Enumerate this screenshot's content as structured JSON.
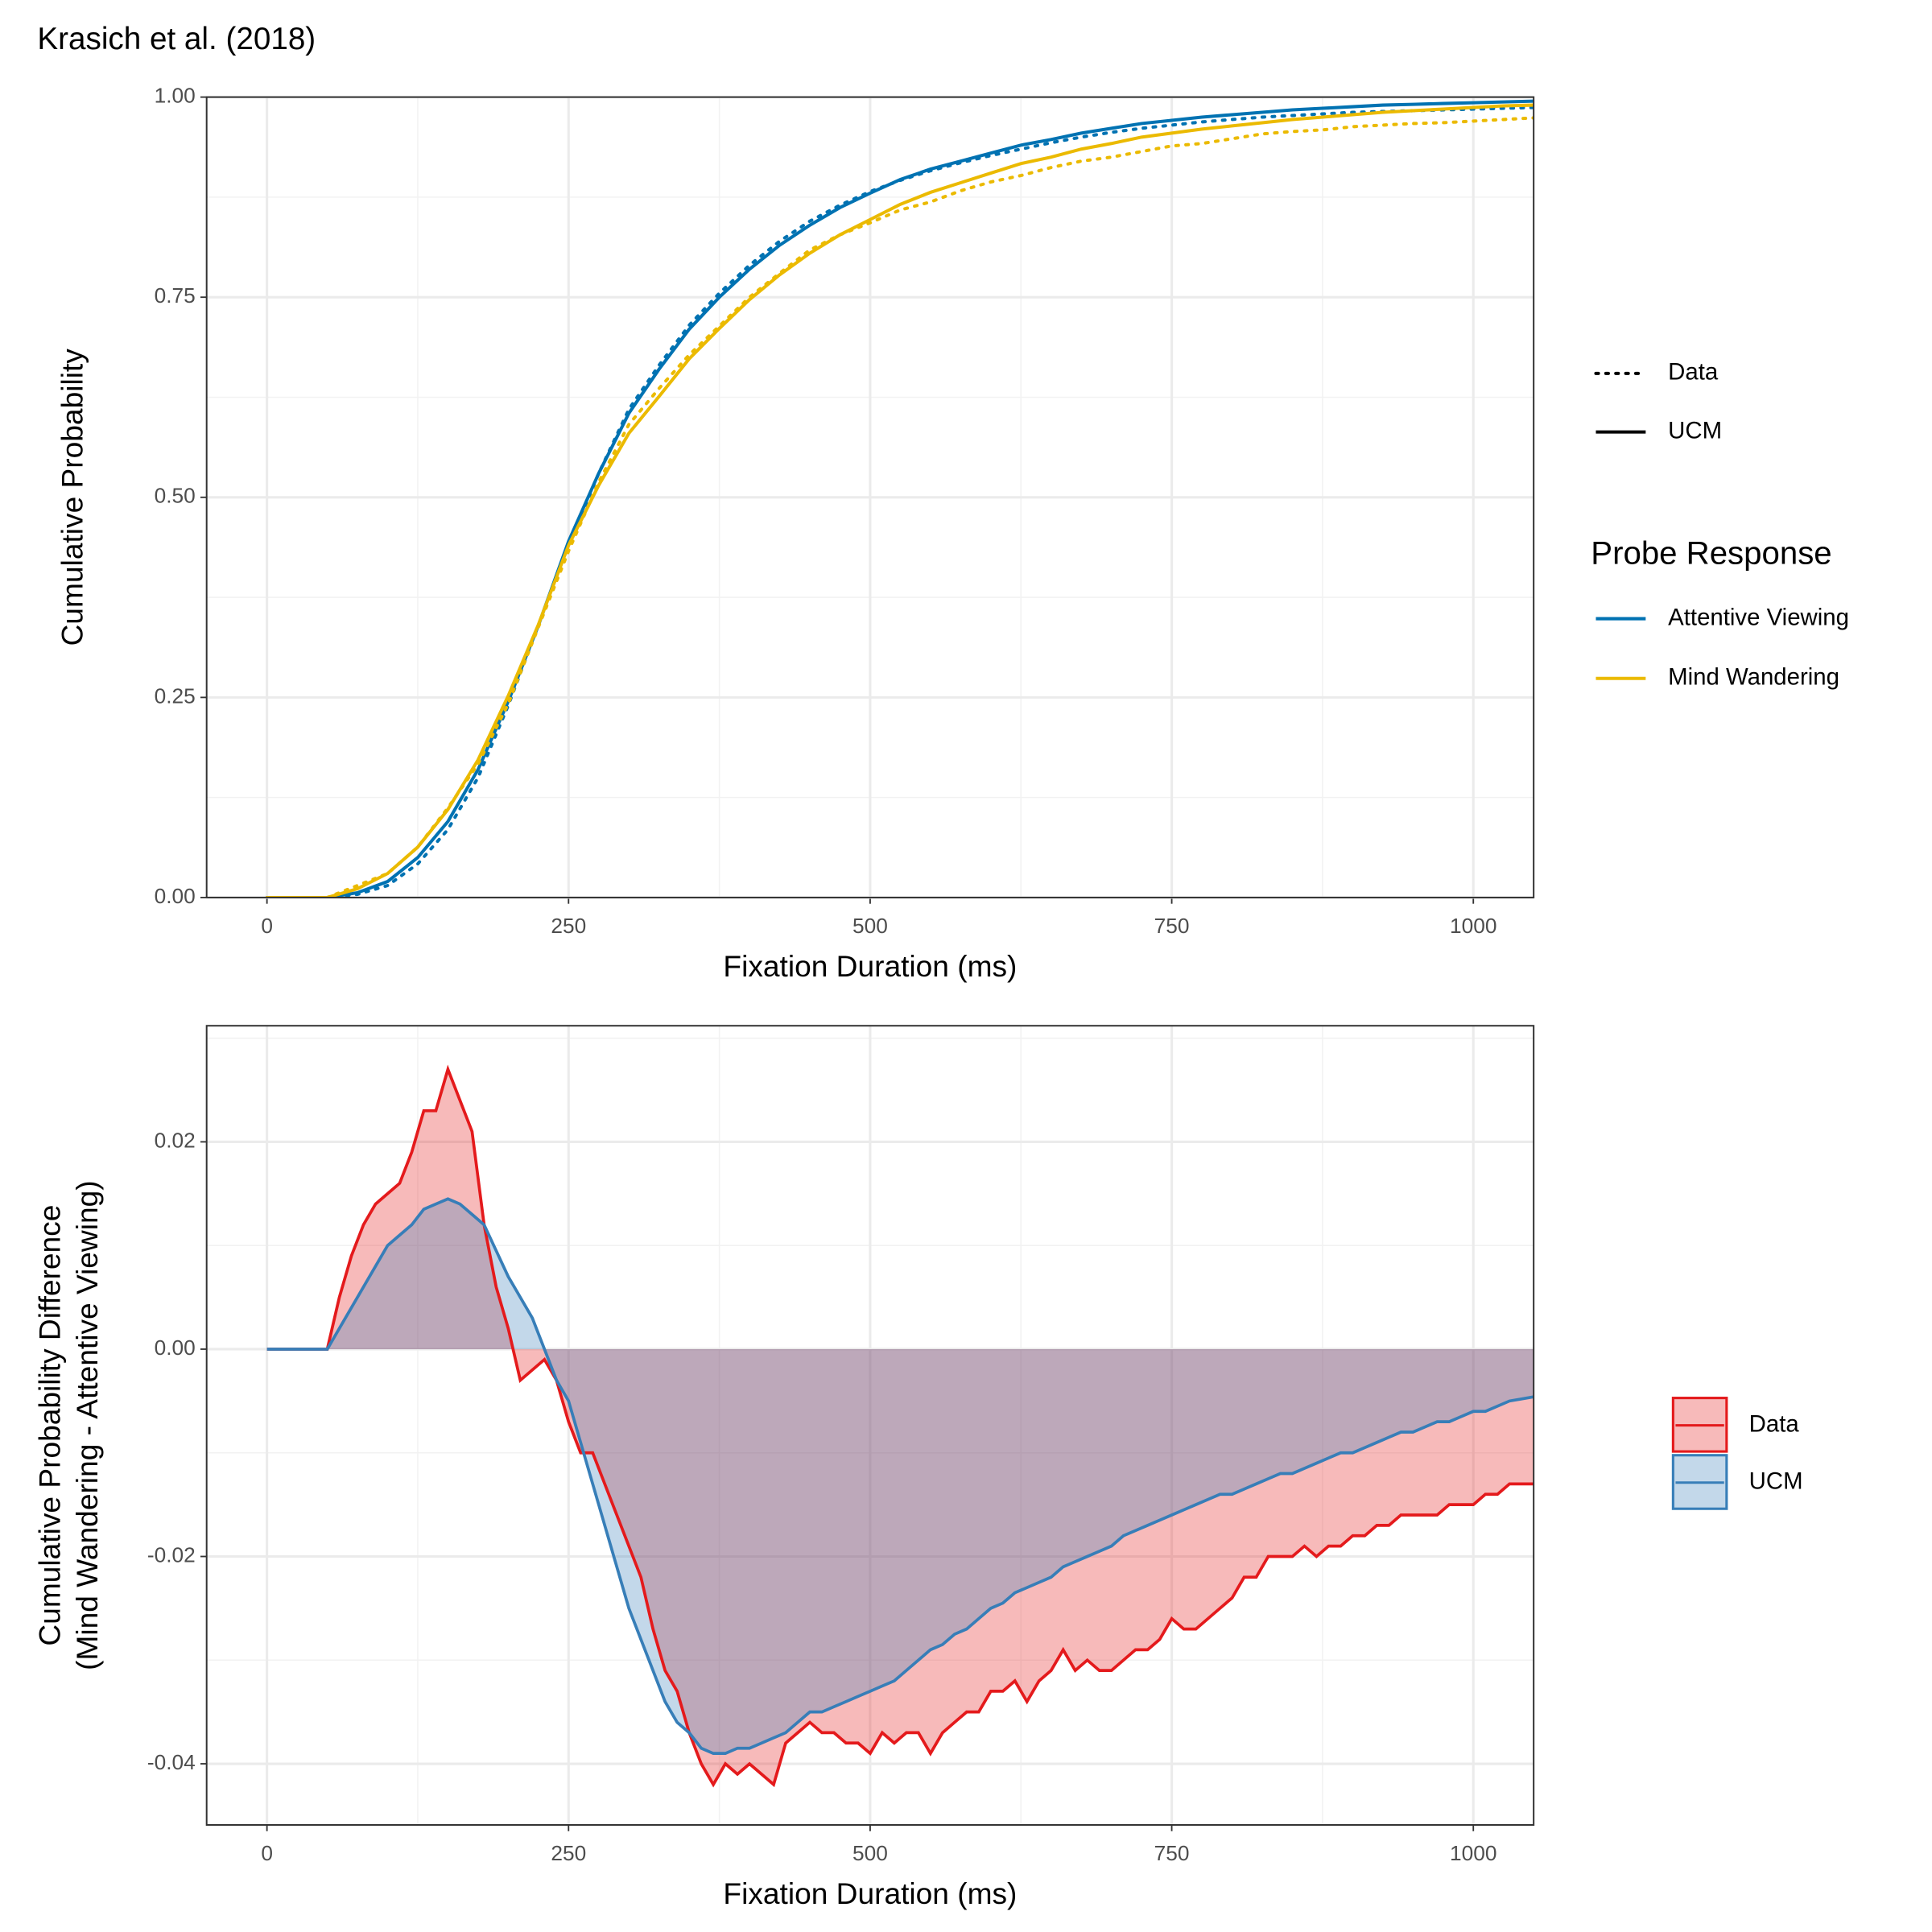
{
  "chart_data": [
    {
      "type": "line",
      "title": "Krasich et al. (2018)",
      "xlabel": "Fixation Duration (ms)",
      "ylabel": "Cumulative Probability",
      "x": [
        0,
        25,
        50,
        75,
        100,
        125,
        150,
        175,
        200,
        225,
        250,
        275,
        300,
        325,
        350,
        375,
        400,
        425,
        450,
        475,
        500,
        525,
        550,
        575,
        600,
        625,
        650,
        675,
        700,
        725,
        750,
        775,
        800,
        825,
        850,
        875,
        900,
        925,
        950,
        975,
        1000,
        1025,
        1050
      ],
      "xlim": [
        -50,
        1050
      ],
      "ylim": [
        0,
        1
      ],
      "xticks": [
        0,
        250,
        500,
        750,
        1000
      ],
      "yticks": [
        {
          "value": 0,
          "label": "0.00"
        },
        {
          "value": 0.25,
          "label": "0.25"
        },
        {
          "value": 0.5,
          "label": "0.50"
        },
        {
          "value": 0.75,
          "label": "0.75"
        },
        {
          "value": 1,
          "label": "1.00"
        }
      ],
      "x_minor_grid": [
        125,
        375,
        625,
        875
      ],
      "y_minor_grid": [
        0.125,
        0.375,
        0.625,
        0.875
      ],
      "grid": true,
      "legend": "right",
      "legend_title": "Probe Response",
      "linetypes": [
        {
          "label": "Data",
          "dash": "dotted"
        },
        {
          "label": "UCM",
          "dash": "solid"
        }
      ],
      "series": [
        {
          "name": "Attentive Viewing",
          "color": "#0072B2",
          "dash": "dotted",
          "values": [
            0,
            0,
            0,
            0.004,
            0.015,
            0.042,
            0.085,
            0.15,
            0.24,
            0.34,
            0.44,
            0.53,
            0.61,
            0.665,
            0.715,
            0.755,
            0.79,
            0.82,
            0.845,
            0.865,
            0.882,
            0.896,
            0.908,
            0.918,
            0.927,
            0.935,
            0.943,
            0.95,
            0.956,
            0.961,
            0.965,
            0.969,
            0.972,
            0.975,
            0.977,
            0.979,
            0.981,
            0.982,
            0.983,
            0.984,
            0.985,
            0.986,
            0.987
          ]
        },
        {
          "name": "Attentive Viewing",
          "color": "#0072B2",
          "dash": "solid",
          "values": [
            0,
            0,
            0,
            0.006,
            0.02,
            0.05,
            0.095,
            0.16,
            0.245,
            0.34,
            0.445,
            0.53,
            0.605,
            0.66,
            0.71,
            0.75,
            0.785,
            0.815,
            0.84,
            0.862,
            0.88,
            0.897,
            0.91,
            0.92,
            0.93,
            0.94,
            0.947,
            0.955,
            0.961,
            0.967,
            0.971,
            0.975,
            0.978,
            0.981,
            0.984,
            0.986,
            0.988,
            0.99,
            0.991,
            0.992,
            0.993,
            0.994,
            0.995
          ]
        },
        {
          "name": "Mind Wandering",
          "color": "#EBBA00",
          "dash": "dotted",
          "values": [
            0,
            0,
            0,
            0.015,
            0.03,
            0.063,
            0.112,
            0.167,
            0.242,
            0.338,
            0.433,
            0.519,
            0.591,
            0.636,
            0.678,
            0.714,
            0.75,
            0.78,
            0.809,
            0.828,
            0.843,
            0.859,
            0.869,
            0.883,
            0.894,
            0.902,
            0.912,
            0.92,
            0.925,
            0.932,
            0.939,
            0.942,
            0.948,
            0.954,
            0.957,
            0.959,
            0.963,
            0.965,
            0.967,
            0.968,
            0.97,
            0.972,
            0.974
          ]
        },
        {
          "name": "Mind Wandering",
          "color": "#EBBA00",
          "dash": "solid",
          "values": [
            0,
            0,
            0,
            0.011,
            0.03,
            0.063,
            0.11,
            0.172,
            0.252,
            0.341,
            0.44,
            0.515,
            0.58,
            0.626,
            0.673,
            0.711,
            0.747,
            0.778,
            0.805,
            0.828,
            0.847,
            0.866,
            0.881,
            0.893,
            0.905,
            0.917,
            0.925,
            0.935,
            0.942,
            0.95,
            0.955,
            0.96,
            0.964,
            0.968,
            0.972,
            0.975,
            0.978,
            0.981,
            0.983,
            0.985,
            0.987,
            0.989,
            0.99
          ]
        }
      ]
    },
    {
      "type": "area",
      "xlabel": "Fixation Duration (ms)",
      "ylabel": [
        "Cumulative Probability Difference",
        "(Mind Wandering - Attentive Viewing)"
      ],
      "x": [
        0,
        10,
        20,
        30,
        40,
        50,
        60,
        70,
        80,
        90,
        100,
        110,
        120,
        130,
        140,
        150,
        160,
        170,
        180,
        190,
        200,
        210,
        220,
        230,
        240,
        250,
        260,
        270,
        280,
        290,
        300,
        310,
        320,
        330,
        340,
        350,
        360,
        370,
        380,
        390,
        400,
        410,
        420,
        430,
        440,
        450,
        460,
        470,
        480,
        490,
        500,
        510,
        520,
        530,
        540,
        550,
        560,
        570,
        580,
        590,
        600,
        610,
        620,
        630,
        640,
        650,
        660,
        670,
        680,
        690,
        700,
        710,
        720,
        730,
        740,
        750,
        760,
        770,
        780,
        790,
        800,
        810,
        820,
        830,
        840,
        850,
        860,
        870,
        880,
        890,
        900,
        910,
        920,
        930,
        940,
        950,
        960,
        970,
        980,
        990,
        1000,
        1010,
        1020,
        1030,
        1040,
        1050
      ],
      "xlim": [
        -50,
        1050
      ],
      "ylim": [
        -0.0459,
        0.0312
      ],
      "xticks": [
        0,
        250,
        500,
        750,
        1000
      ],
      "yticks": [
        {
          "value": -0.04,
          "label": "-0.04"
        },
        {
          "value": -0.02,
          "label": "-0.02"
        },
        {
          "value": 0,
          "label": "0.00"
        },
        {
          "value": 0.02,
          "label": "0.02"
        }
      ],
      "x_minor_grid": [
        125,
        375,
        625,
        875
      ],
      "y_minor_grid": [
        -0.03,
        -0.01,
        0.01,
        0.03
      ],
      "grid": true,
      "legend": "right",
      "series": [
        {
          "name": "Data",
          "color": "#E41A1C",
          "values": [
            0,
            0,
            0,
            0,
            0,
            0,
            0.005,
            0.009,
            0.012,
            0.014,
            0.015,
            0.016,
            0.019,
            0.023,
            0.023,
            0.027,
            0.024,
            0.021,
            0.012,
            0.006,
            0.002,
            -0.003,
            -0.002,
            -0.001,
            -0.003,
            -0.007,
            -0.01,
            -0.01,
            -0.013,
            -0.016,
            -0.019,
            -0.022,
            -0.027,
            -0.031,
            -0.033,
            -0.037,
            -0.04,
            -0.042,
            -0.04,
            -0.041,
            -0.04,
            -0.041,
            -0.042,
            -0.038,
            -0.037,
            -0.036,
            -0.037,
            -0.037,
            -0.038,
            -0.038,
            -0.039,
            -0.037,
            -0.038,
            -0.037,
            -0.037,
            -0.039,
            -0.037,
            -0.036,
            -0.035,
            -0.035,
            -0.033,
            -0.033,
            -0.032,
            -0.034,
            -0.032,
            -0.031,
            -0.029,
            -0.031,
            -0.03,
            -0.031,
            -0.031,
            -0.03,
            -0.029,
            -0.029,
            -0.028,
            -0.026,
            -0.027,
            -0.027,
            -0.026,
            -0.025,
            -0.024,
            -0.022,
            -0.022,
            -0.02,
            -0.02,
            -0.02,
            -0.019,
            -0.02,
            -0.019,
            -0.019,
            -0.018,
            -0.018,
            -0.017,
            -0.017,
            -0.016,
            -0.016,
            -0.016,
            -0.016,
            -0.015,
            -0.015,
            -0.015,
            -0.014,
            -0.014,
            -0.013,
            -0.013,
            -0.013
          ]
        },
        {
          "name": "UCM",
          "color": "#377EB8",
          "values": [
            0,
            0,
            0,
            0,
            0,
            0,
            0.002,
            0.004,
            0.006,
            0.008,
            0.01,
            0.011,
            0.012,
            0.0135,
            0.014,
            0.0145,
            0.014,
            0.013,
            0.012,
            0.0095,
            0.007,
            0.005,
            0.003,
            0,
            -0.003,
            -0.005,
            -0.009,
            -0.013,
            -0.017,
            -0.021,
            -0.025,
            -0.028,
            -0.031,
            -0.034,
            -0.036,
            -0.037,
            -0.0385,
            -0.039,
            -0.039,
            -0.0385,
            -0.0385,
            -0.038,
            -0.0375,
            -0.037,
            -0.036,
            -0.035,
            -0.035,
            -0.0345,
            -0.034,
            -0.0335,
            -0.033,
            -0.0325,
            -0.032,
            -0.031,
            -0.03,
            -0.029,
            -0.0285,
            -0.0275,
            -0.027,
            -0.026,
            -0.025,
            -0.0245,
            -0.0235,
            -0.023,
            -0.0225,
            -0.022,
            -0.021,
            -0.0205,
            -0.02,
            -0.0195,
            -0.019,
            -0.018,
            -0.0175,
            -0.017,
            -0.0165,
            -0.016,
            -0.0155,
            -0.015,
            -0.0145,
            -0.014,
            -0.014,
            -0.0135,
            -0.013,
            -0.0125,
            -0.012,
            -0.012,
            -0.0115,
            -0.011,
            -0.0105,
            -0.01,
            -0.01,
            -0.0095,
            -0.009,
            -0.0085,
            -0.008,
            -0.008,
            -0.0075,
            -0.007,
            -0.007,
            -0.0065,
            -0.006,
            -0.006,
            -0.0055,
            -0.005,
            -0.0048,
            -0.0046
          ]
        }
      ]
    }
  ]
}
